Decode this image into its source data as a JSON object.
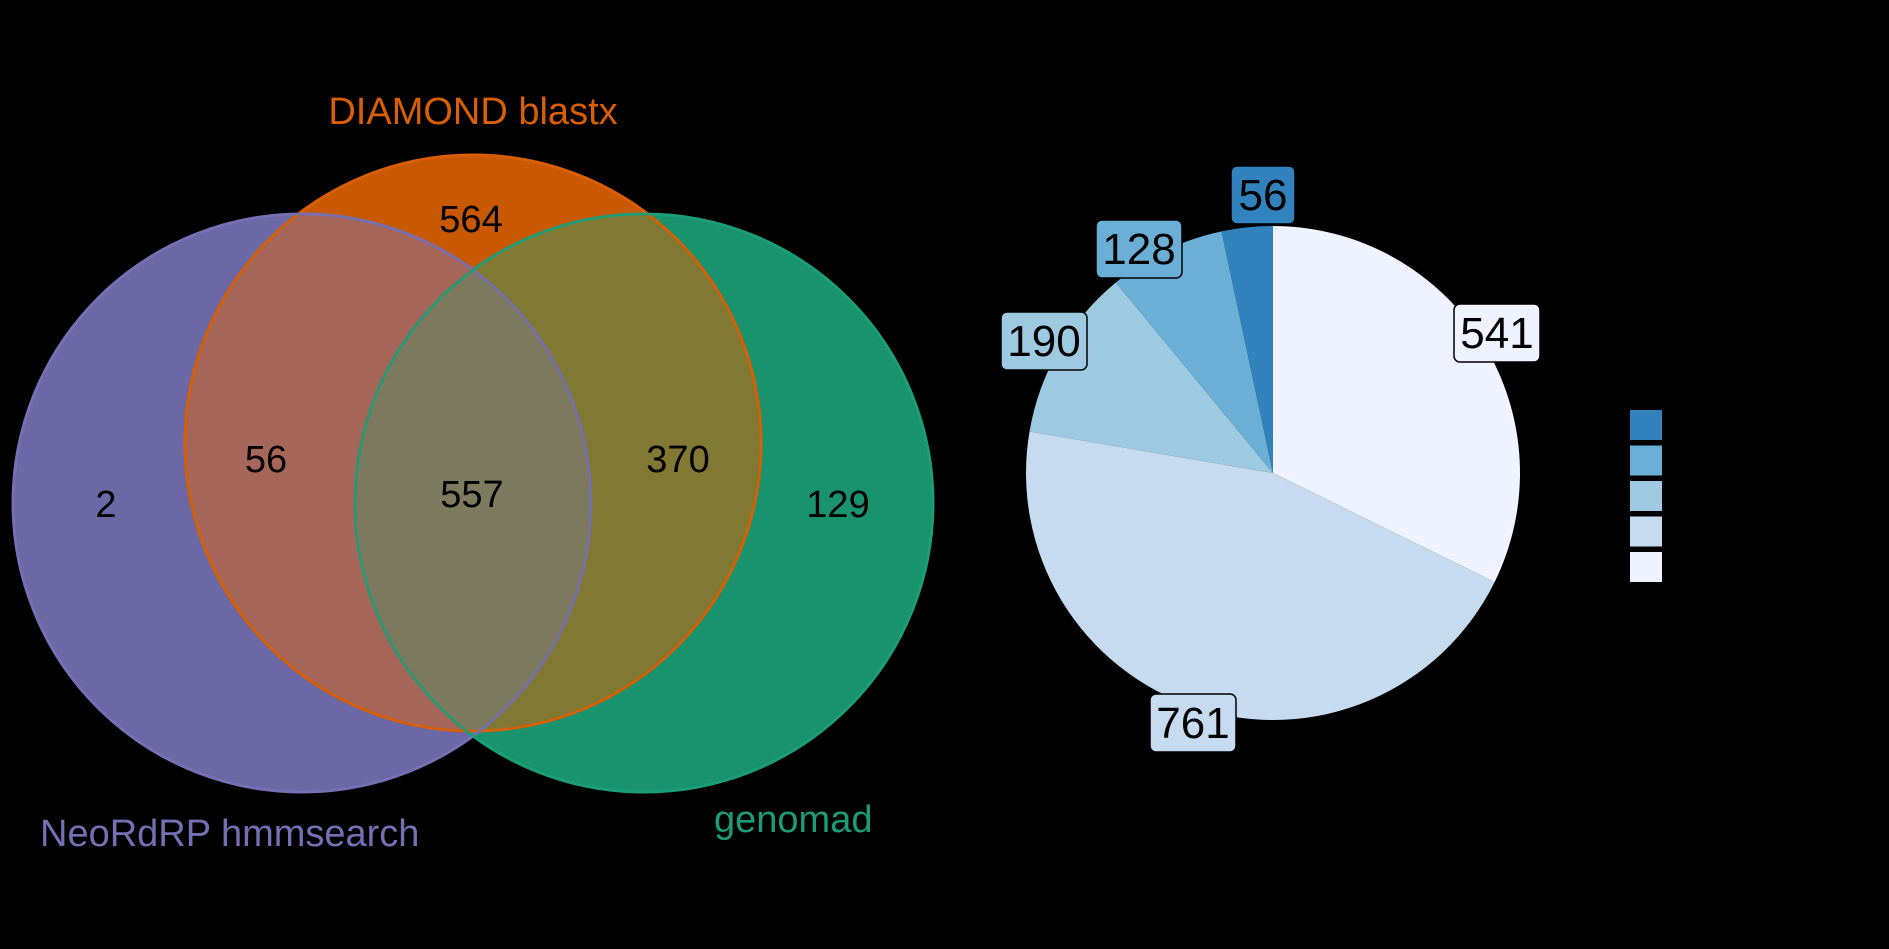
{
  "chart_data": [
    {
      "type": "venn",
      "sets": [
        {
          "name": "DIAMOND blastx",
          "color": "#D95F02"
        },
        {
          "name": "NeoRdRP hmmsearch",
          "color": "#7570B3"
        },
        {
          "name": "genomad",
          "color": "#1B9E77"
        }
      ],
      "regions": [
        {
          "sets": [
            "DIAMOND blastx"
          ],
          "value": 564
        },
        {
          "sets": [
            "NeoRdRP hmmsearch"
          ],
          "value": 2
        },
        {
          "sets": [
            "genomad"
          ],
          "value": 129
        },
        {
          "sets": [
            "DIAMOND blastx",
            "NeoRdRP hmmsearch"
          ],
          "value": 56
        },
        {
          "sets": [
            "DIAMOND blastx",
            "genomad"
          ],
          "value": 370
        },
        {
          "sets": [
            "DIAMOND blastx",
            "NeoRdRP hmmsearch",
            "genomad"
          ],
          "value": 557
        }
      ]
    },
    {
      "type": "pie",
      "values": [
        541,
        761,
        190,
        128,
        56
      ],
      "colors": [
        "#EFF3FF",
        "#C6DBEF",
        "#9ECAE1",
        "#6BAED6",
        "#3182BD"
      ],
      "legend": {
        "placement": "right",
        "swatches": [
          "#3182BD",
          "#6BAED6",
          "#9ECAE1",
          "#C6DBEF",
          "#EFF3FF"
        ]
      }
    }
  ]
}
